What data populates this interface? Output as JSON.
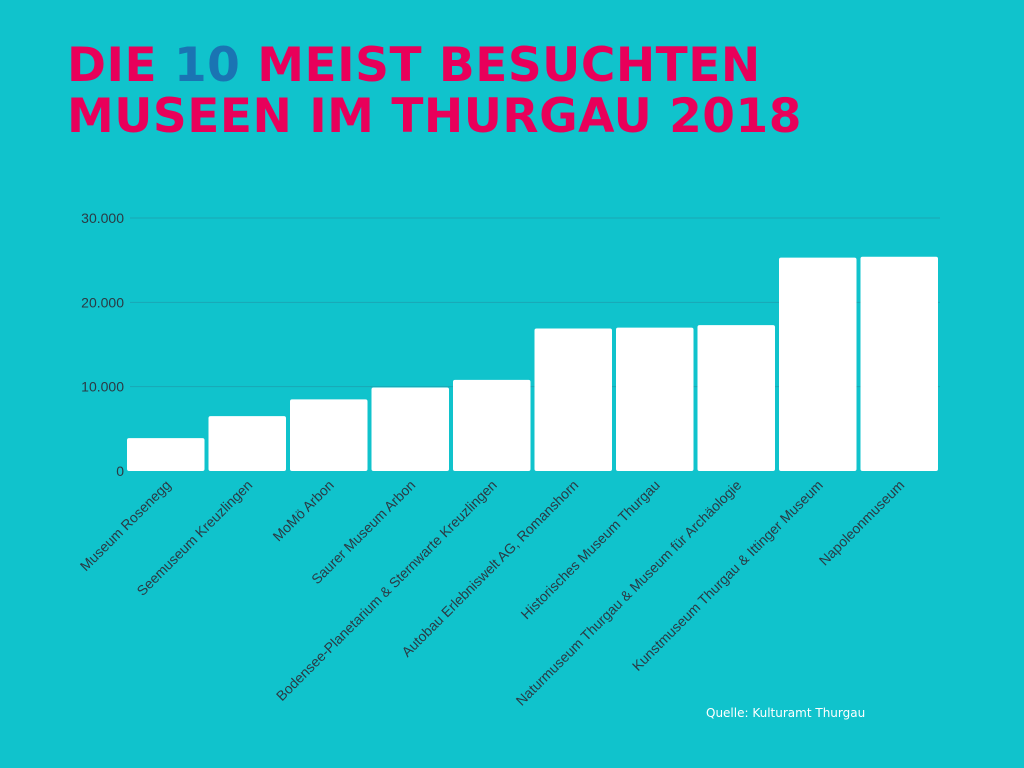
{
  "title": {
    "line1_before": "DIE ",
    "line1_number": "10",
    "line1_after": " MEIST BESUCHTEN",
    "line2": "MUSEEN IM THURGAU 2018"
  },
  "source": "Quelle: Kulturamt Thurgau",
  "colors": {
    "background": "#10c3cc",
    "title": "#e8005a",
    "title_highlight": "#1a74b3",
    "bar": "#ffffff",
    "gridline": "#1aa7b5",
    "axis_text": "#2b3a44"
  },
  "chart_data": {
    "type": "bar",
    "categories": [
      "Museum Rosenegg",
      "Seemuseum Kreuzlingen",
      "MoMö Arbon",
      "Saurer Museum Arbon",
      "Bodensee-Planetarium & Sternwarte Kreuzlingen",
      "Autobau Erlebniswelt AG, Romanshorn",
      "Historisches Museum Thurgau",
      "Naturmuseum Thurgau & Museum für Archäologie",
      "Kunstmuseum Thurgau & Ittinger Museum",
      "Napoleonmuseum"
    ],
    "values": [
      3900,
      6500,
      8500,
      9900,
      10800,
      16900,
      17000,
      17300,
      25300,
      25400
    ],
    "yticks": [
      0,
      10000,
      20000,
      30000
    ],
    "ytick_labels": [
      "0",
      "10.000",
      "20.000",
      "30.000"
    ],
    "ylim": [
      0,
      30000
    ],
    "grid": true,
    "title": "",
    "xlabel": "",
    "ylabel": ""
  }
}
